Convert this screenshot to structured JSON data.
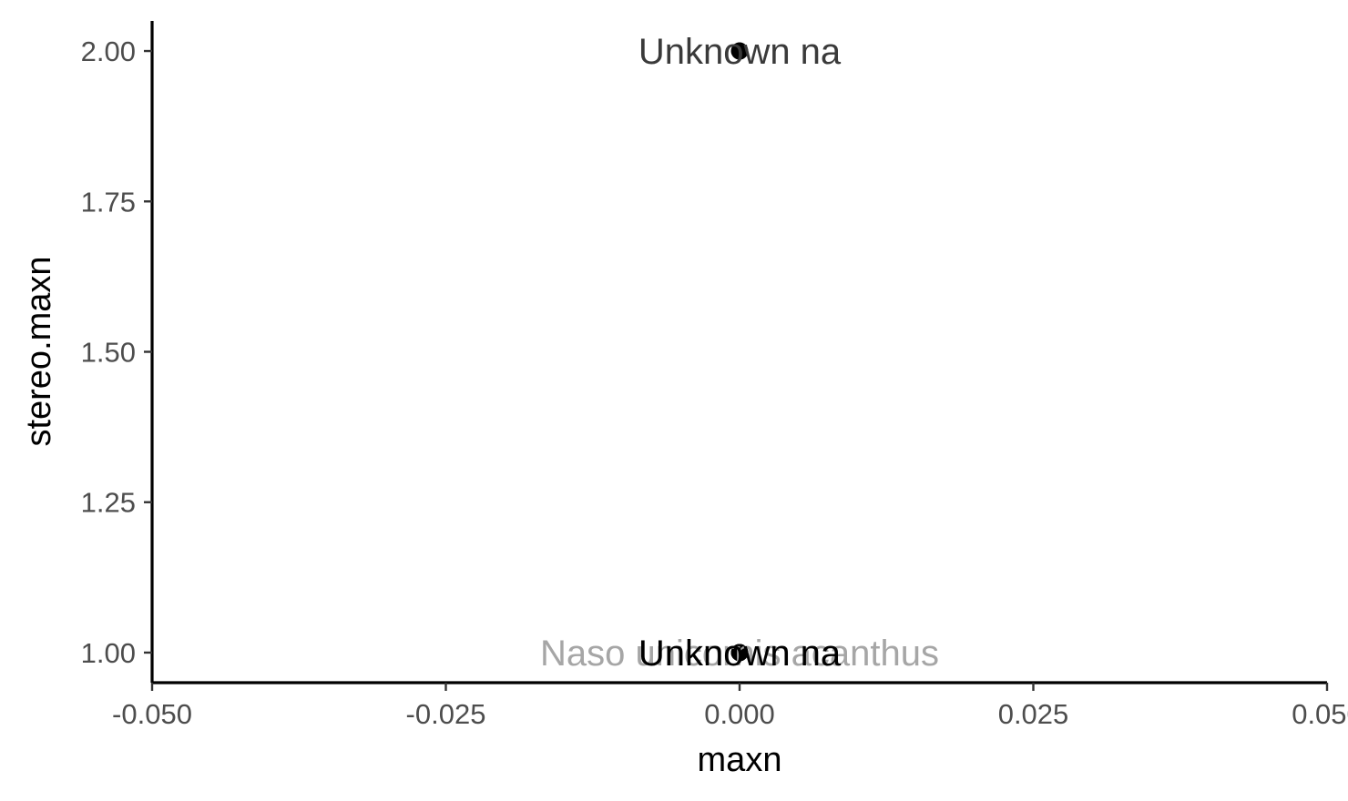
{
  "chart_data": {
    "type": "scatter",
    "title": "",
    "xlabel": "maxn",
    "ylabel": "stereo.maxn",
    "xlim": [
      -0.05,
      0.05
    ],
    "ylim": [
      0.95,
      2.05
    ],
    "grid": false,
    "x_ticks": [
      -0.05,
      -0.025,
      0.0,
      0.025,
      0.05
    ],
    "x_tick_labels": [
      "-0.050",
      "-0.025",
      "0.000",
      "0.025",
      "0.050"
    ],
    "y_ticks": [
      1.0,
      1.25,
      1.5,
      1.75,
      2.0
    ],
    "y_tick_labels": [
      "1.00",
      "1.25",
      "1.50",
      "1.75",
      "2.00"
    ],
    "points": [
      {
        "x": 0,
        "y": 2
      },
      {
        "x": 0,
        "y": 1
      },
      {
        "x": 0,
        "y": 1
      }
    ],
    "annotations": [
      {
        "x": 0,
        "y": 2,
        "text": "Unknown na",
        "color": "#3a3a3a"
      },
      {
        "x": 0,
        "y": 1,
        "text": "Naso unicornis acanthus",
        "color": "#a6a6a6"
      },
      {
        "x": 0,
        "y": 1,
        "text": "Unknown na",
        "color": "#000000"
      }
    ],
    "point_color": "#000000"
  }
}
